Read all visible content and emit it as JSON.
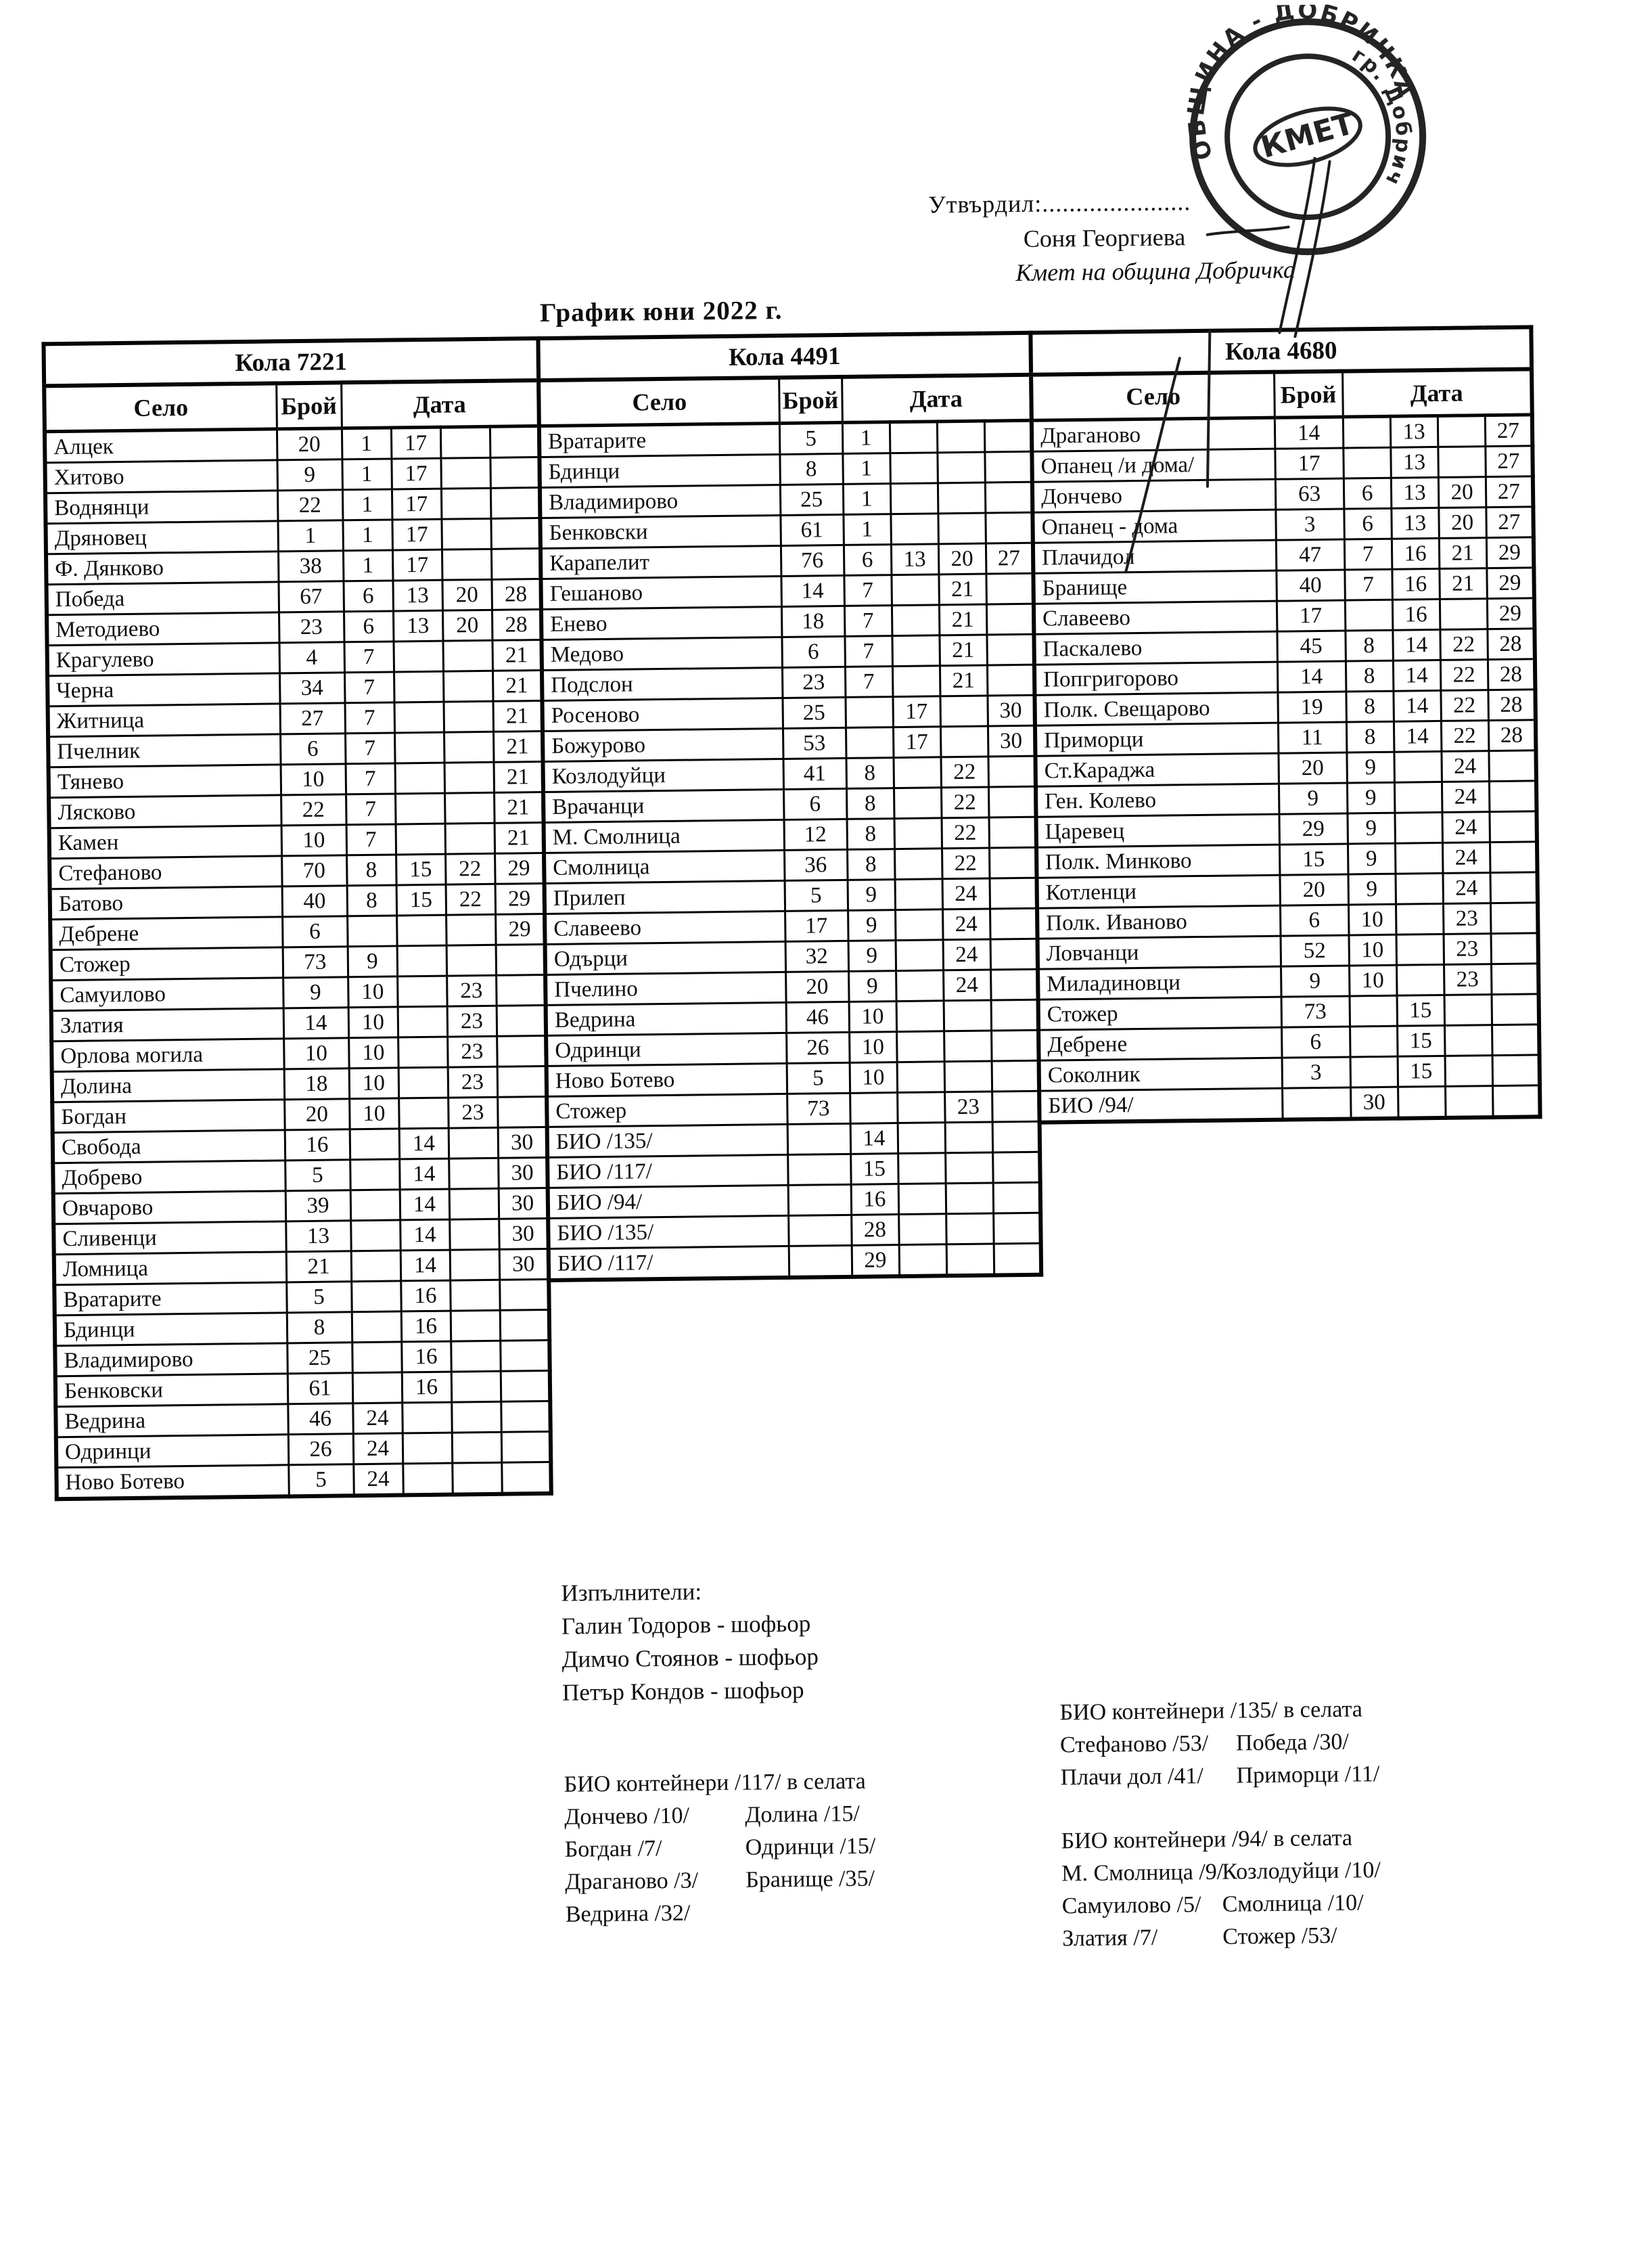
{
  "colors": {
    "ink": "#0e0e0e",
    "paper": "#ffffff"
  },
  "approval": {
    "line": "Утвърдил:......................",
    "name": "Соня Георгиева",
    "title": "Кмет  на община Добричка"
  },
  "stamp": {
    "ring_text_top": "ОБЩИНА - ДОБРИЧКА",
    "ring_text_side": "гр. Добрич",
    "center": "КМЕТ"
  },
  "title": "График юни 2022 г.",
  "tables": [
    {
      "name": "Кола 7221",
      "headers": {
        "village": "Село",
        "count": "Брой",
        "date": "Дата"
      },
      "rows": [
        {
          "village": "Алцек",
          "count": "20",
          "dates": [
            "1",
            "17",
            "",
            ""
          ]
        },
        {
          "village": "Хитово",
          "count": "9",
          "dates": [
            "1",
            "17",
            "",
            ""
          ]
        },
        {
          "village": "Воднянци",
          "count": "22",
          "dates": [
            "1",
            "17",
            "",
            ""
          ]
        },
        {
          "village": "Дряновец",
          "count": "1",
          "dates": [
            "1",
            "17",
            "",
            ""
          ]
        },
        {
          "village": "Ф. Дянково",
          "count": "38",
          "dates": [
            "1",
            "17",
            "",
            ""
          ]
        },
        {
          "village": "Победа",
          "count": "67",
          "dates": [
            "6",
            "13",
            "20",
            "28"
          ]
        },
        {
          "village": "Методиево",
          "count": "23",
          "dates": [
            "6",
            "13",
            "20",
            "28"
          ]
        },
        {
          "village": "Крагулево",
          "count": "4",
          "dates": [
            "7",
            "",
            "",
            "21"
          ]
        },
        {
          "village": "Черна",
          "count": "34",
          "dates": [
            "7",
            "",
            "",
            "21"
          ]
        },
        {
          "village": "Житница",
          "count": "27",
          "dates": [
            "7",
            "",
            "",
            "21"
          ]
        },
        {
          "village": "Пчелник",
          "count": "6",
          "dates": [
            "7",
            "",
            "",
            "21"
          ]
        },
        {
          "village": "Тянево",
          "count": "10",
          "dates": [
            "7",
            "",
            "",
            "21"
          ]
        },
        {
          "village": "Лясково",
          "count": "22",
          "dates": [
            "7",
            "",
            "",
            "21"
          ]
        },
        {
          "village": "Камен",
          "count": "10",
          "dates": [
            "7",
            "",
            "",
            "21"
          ]
        },
        {
          "village": "Стефаново",
          "count": "70",
          "dates": [
            "8",
            "15",
            "22",
            "29"
          ]
        },
        {
          "village": "Батово",
          "count": "40",
          "dates": [
            "8",
            "15",
            "22",
            "29"
          ]
        },
        {
          "village": "Дебрене",
          "count": "6",
          "dates": [
            "",
            "",
            "",
            "29"
          ]
        },
        {
          "village": "Стожер",
          "count": "73",
          "dates": [
            "9",
            "",
            "",
            ""
          ]
        },
        {
          "village": "Самуилово",
          "count": "9",
          "dates": [
            "10",
            "",
            "23",
            ""
          ]
        },
        {
          "village": "Златия",
          "count": "14",
          "dates": [
            "10",
            "",
            "23",
            ""
          ]
        },
        {
          "village": "Орлова могила",
          "count": "10",
          "dates": [
            "10",
            "",
            "23",
            ""
          ]
        },
        {
          "village": "Долина",
          "count": "18",
          "dates": [
            "10",
            "",
            "23",
            ""
          ]
        },
        {
          "village": "Богдан",
          "count": "20",
          "dates": [
            "10",
            "",
            "23",
            ""
          ]
        },
        {
          "village": "Свобода",
          "count": "16",
          "dates": [
            "",
            "14",
            "",
            "30"
          ]
        },
        {
          "village": "Добрево",
          "count": "5",
          "dates": [
            "",
            "14",
            "",
            "30"
          ]
        },
        {
          "village": "Овчарово",
          "count": "39",
          "dates": [
            "",
            "14",
            "",
            "30"
          ]
        },
        {
          "village": "Сливенци",
          "count": "13",
          "dates": [
            "",
            "14",
            "",
            "30"
          ]
        },
        {
          "village": "Ломница",
          "count": "21",
          "dates": [
            "",
            "14",
            "",
            "30"
          ]
        },
        {
          "village": "Вратарите",
          "count": "5",
          "dates": [
            "",
            "16",
            "",
            ""
          ]
        },
        {
          "village": "Бдинци",
          "count": "8",
          "dates": [
            "",
            "16",
            "",
            ""
          ]
        },
        {
          "village": "Владимирово",
          "count": "25",
          "dates": [
            "",
            "16",
            "",
            ""
          ]
        },
        {
          "village": "Бенковски",
          "count": "61",
          "dates": [
            "",
            "16",
            "",
            ""
          ]
        },
        {
          "village": "Ведрина",
          "count": "46",
          "dates": [
            "24",
            "",
            "",
            ""
          ]
        },
        {
          "village": "Одринци",
          "count": "26",
          "dates": [
            "24",
            "",
            "",
            ""
          ]
        },
        {
          "village": "Ново Ботево",
          "count": "5",
          "dates": [
            "24",
            "",
            "",
            ""
          ]
        }
      ]
    },
    {
      "name": "Кола 4491",
      "headers": {
        "village": "Село",
        "count": "Брой",
        "date": "Дата"
      },
      "rows": [
        {
          "village": "Вратарите",
          "count": "5",
          "dates": [
            "1",
            "",
            "",
            ""
          ]
        },
        {
          "village": "Бдинци",
          "count": "8",
          "dates": [
            "1",
            "",
            "",
            ""
          ]
        },
        {
          "village": "Владимирово",
          "count": "25",
          "dates": [
            "1",
            "",
            "",
            ""
          ]
        },
        {
          "village": "Бенковски",
          "count": "61",
          "dates": [
            "1",
            "",
            "",
            ""
          ]
        },
        {
          "village": "Карапелит",
          "count": "76",
          "dates": [
            "6",
            "13",
            "20",
            "27"
          ]
        },
        {
          "village": "Гешаново",
          "count": "14",
          "dates": [
            "7",
            "",
            "21",
            ""
          ]
        },
        {
          "village": "Енево",
          "count": "18",
          "dates": [
            "7",
            "",
            "21",
            ""
          ]
        },
        {
          "village": "Медово",
          "count": "6",
          "dates": [
            "7",
            "",
            "21",
            ""
          ]
        },
        {
          "village": "Подслон",
          "count": "23",
          "dates": [
            "7",
            "",
            "21",
            ""
          ]
        },
        {
          "village": "Росеново",
          "count": "25",
          "dates": [
            "",
            "17",
            "",
            "30"
          ]
        },
        {
          "village": "Божурово",
          "count": "53",
          "dates": [
            "",
            "17",
            "",
            "30"
          ]
        },
        {
          "village": "Козлодуйци",
          "count": "41",
          "dates": [
            "8",
            "",
            "22",
            ""
          ]
        },
        {
          "village": "Врачанци",
          "count": "6",
          "dates": [
            "8",
            "",
            "22",
            ""
          ]
        },
        {
          "village": "М. Смолница",
          "count": "12",
          "dates": [
            "8",
            "",
            "22",
            ""
          ]
        },
        {
          "village": "Смолница",
          "count": "36",
          "dates": [
            "8",
            "",
            "22",
            ""
          ]
        },
        {
          "village": "Прилеп",
          "count": "5",
          "dates": [
            "9",
            "",
            "24",
            ""
          ]
        },
        {
          "village": "Славеево",
          "count": "17",
          "dates": [
            "9",
            "",
            "24",
            ""
          ]
        },
        {
          "village": "Одърци",
          "count": "32",
          "dates": [
            "9",
            "",
            "24",
            ""
          ]
        },
        {
          "village": "Пчелино",
          "count": "20",
          "dates": [
            "9",
            "",
            "24",
            ""
          ]
        },
        {
          "village": "Ведрина",
          "count": "46",
          "dates": [
            "10",
            "",
            "",
            ""
          ]
        },
        {
          "village": "Одринци",
          "count": "26",
          "dates": [
            "10",
            "",
            "",
            ""
          ]
        },
        {
          "village": "Ново Ботево",
          "count": "5",
          "dates": [
            "10",
            "",
            "",
            ""
          ]
        },
        {
          "village": "Стожер",
          "count": "73",
          "dates": [
            "",
            "",
            "23",
            ""
          ]
        },
        {
          "village": "БИО /135/",
          "count": "",
          "dates": [
            "14",
            "",
            "",
            ""
          ]
        },
        {
          "village": "БИО /117/",
          "count": "",
          "dates": [
            "15",
            "",
            "",
            ""
          ]
        },
        {
          "village": "БИО /94/",
          "count": "",
          "dates": [
            "16",
            "",
            "",
            ""
          ]
        },
        {
          "village": "БИО /135/",
          "count": "",
          "dates": [
            "28",
            "",
            "",
            ""
          ]
        },
        {
          "village": "БИО /117/",
          "count": "",
          "dates": [
            "29",
            "",
            "",
            ""
          ]
        }
      ]
    },
    {
      "name": "Кола 4680",
      "headers": {
        "village": "Село",
        "count": "Брой",
        "date": "Дата"
      },
      "rows": [
        {
          "village": "Драганово",
          "count": "14",
          "dates": [
            "",
            "13",
            "",
            "27"
          ]
        },
        {
          "village": "Опанец /и дома/",
          "count": "17",
          "dates": [
            "",
            "13",
            "",
            "27"
          ]
        },
        {
          "village": "Дончево",
          "count": "63",
          "dates": [
            "6",
            "13",
            "20",
            "27"
          ]
        },
        {
          "village": "Опанец - дома",
          "count": "3",
          "dates": [
            "6",
            "13",
            "20",
            "27"
          ]
        },
        {
          "village": "Плачидол",
          "count": "47",
          "dates": [
            "7",
            "16",
            "21",
            "29"
          ]
        },
        {
          "village": "Бранище",
          "count": "40",
          "dates": [
            "7",
            "16",
            "21",
            "29"
          ]
        },
        {
          "village": "Славеево",
          "count": "17",
          "dates": [
            "",
            "16",
            "",
            "29"
          ]
        },
        {
          "village": "Паскалево",
          "count": "45",
          "dates": [
            "8",
            "14",
            "22",
            "28"
          ]
        },
        {
          "village": "Попгригорово",
          "count": "14",
          "dates": [
            "8",
            "14",
            "22",
            "28"
          ]
        },
        {
          "village": "Полк. Свещарово",
          "count": "19",
          "dates": [
            "8",
            "14",
            "22",
            "28"
          ]
        },
        {
          "village": "Приморци",
          "count": "11",
          "dates": [
            "8",
            "14",
            "22",
            "28"
          ]
        },
        {
          "village": "Ст.Караджа",
          "count": "20",
          "dates": [
            "9",
            "",
            "24",
            ""
          ]
        },
        {
          "village": "Ген. Колево",
          "count": "9",
          "dates": [
            "9",
            "",
            "24",
            ""
          ]
        },
        {
          "village": "Царевец",
          "count": "29",
          "dates": [
            "9",
            "",
            "24",
            ""
          ]
        },
        {
          "village": "Полк. Минково",
          "count": "15",
          "dates": [
            "9",
            "",
            "24",
            ""
          ]
        },
        {
          "village": "Котленци",
          "count": "20",
          "dates": [
            "9",
            "",
            "24",
            ""
          ]
        },
        {
          "village": "Полк. Иваново",
          "count": "6",
          "dates": [
            "10",
            "",
            "23",
            ""
          ]
        },
        {
          "village": "Ловчанци",
          "count": "52",
          "dates": [
            "10",
            "",
            "23",
            ""
          ]
        },
        {
          "village": "Миладиновци",
          "count": "9",
          "dates": [
            "10",
            "",
            "23",
            ""
          ]
        },
        {
          "village": "Стожер",
          "count": "73",
          "dates": [
            "",
            "15",
            "",
            ""
          ]
        },
        {
          "village": "Дебрене",
          "count": "6",
          "dates": [
            "",
            "15",
            "",
            ""
          ]
        },
        {
          "village": "Соколник",
          "count": "3",
          "dates": [
            "",
            "15",
            "",
            ""
          ]
        },
        {
          "village": "БИО /94/",
          "count": "",
          "dates": [
            "30",
            "",
            "",
            ""
          ]
        }
      ]
    }
  ],
  "executors": {
    "heading": "Изпълнители:",
    "names": [
      "Галин Тодоров - шофьор",
      "Димчо Стоянов - шофьор",
      "Петър Кондов - шофьор"
    ]
  },
  "bio_sections": [
    {
      "heading": "БИО контейнери /135/ в селата",
      "col1": [
        "Стефаново /53/",
        "Плачи дол /41/"
      ],
      "col2": [
        "Победа /30/",
        "Приморци /11/"
      ]
    },
    {
      "heading": "БИО контейнери /117/ в селата",
      "col1": [
        "Дончево /10/",
        "Богдан /7/",
        "Драганово /3/",
        "Ведрина /32/"
      ],
      "col2": [
        "Долина /15/",
        "Одринци /15/",
        "Бранище /35/"
      ]
    },
    {
      "heading": "БИО контейнери /94/ в селата",
      "col1": [
        "М. Смолница /9/",
        "Самуилово /5/",
        "Златия /7/"
      ],
      "col2": [
        "Козлодуйци /10/",
        "Смолница /10/",
        "Стожер /53/"
      ]
    }
  ]
}
